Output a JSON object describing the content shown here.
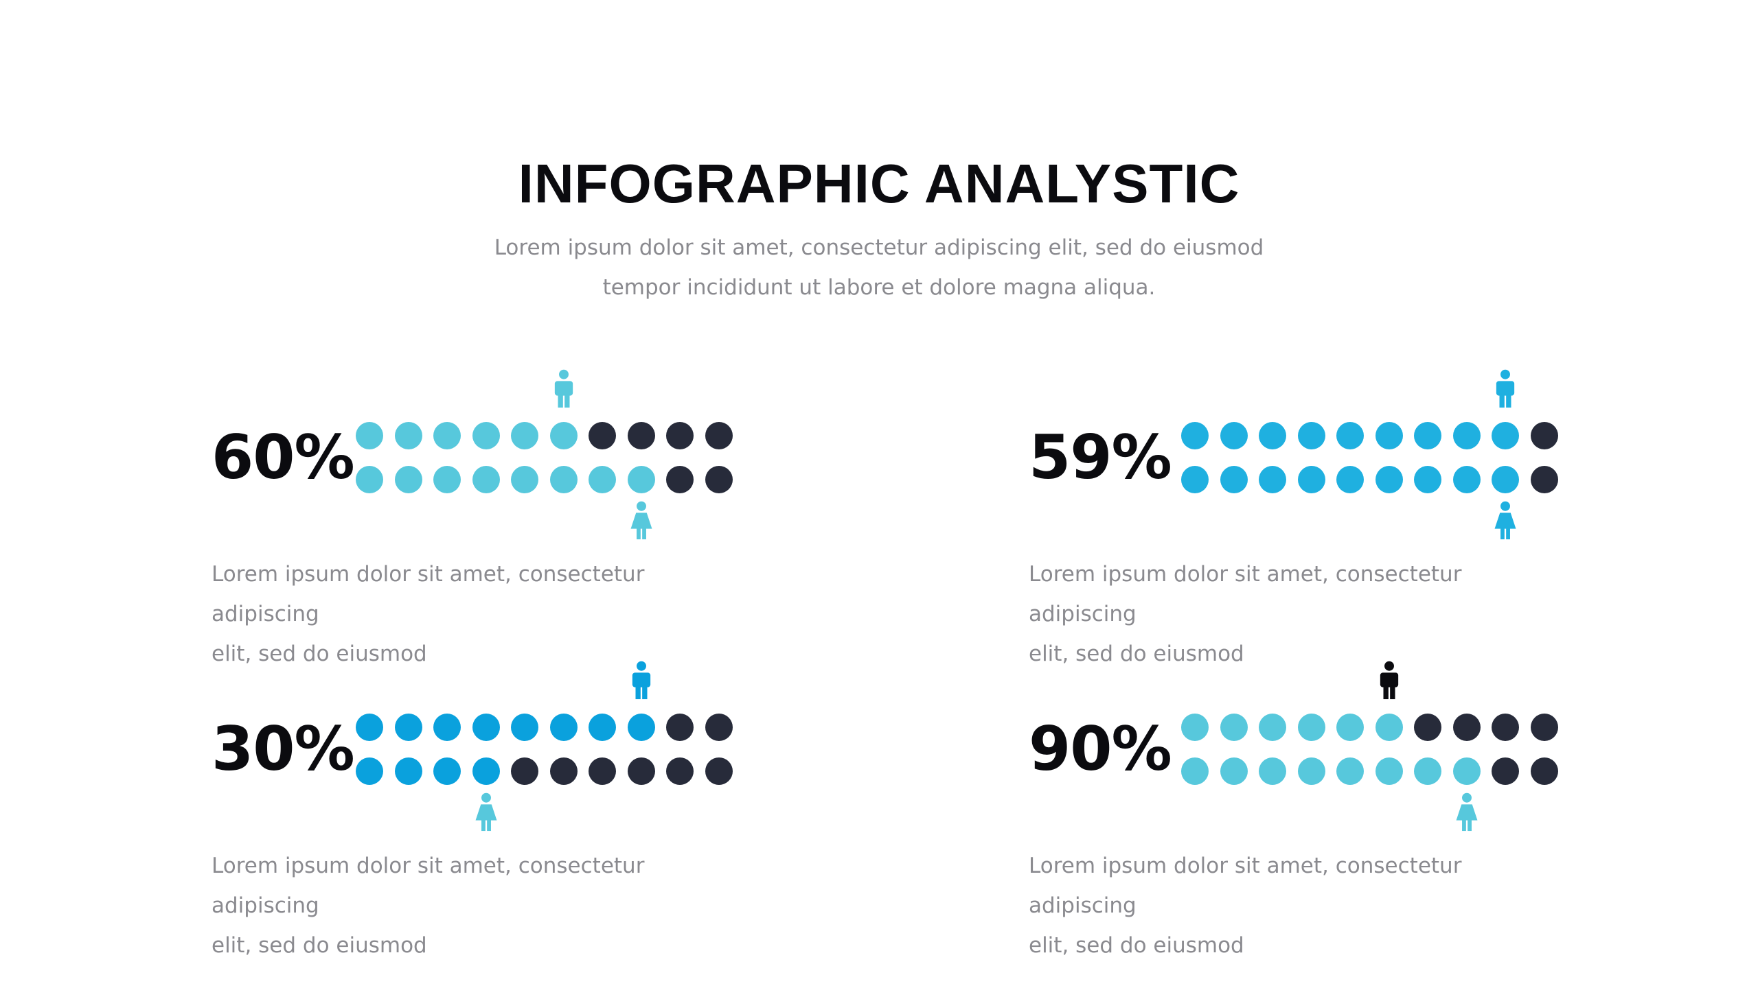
{
  "title": "INFOGRAPHIC ANALYSTIC",
  "subtitle_line1": "Lorem ipsum dolor sit amet, consectetur adipiscing elit, sed do eiusmod",
  "subtitle_line2": "tempor incididunt ut labore et dolore magna aliqua.",
  "colors": {
    "dark": "#272b3a",
    "light_cyan": "#57c8dc",
    "medium_blue": "#1fb0e0",
    "strong_blue": "#0aa1dd",
    "text_gray": "#8a8a8f",
    "title_black": "#0b0b0f"
  },
  "chart_data": [
    {
      "type": "pictogram",
      "label": "60%",
      "value": 60,
      "male_filled": 6,
      "female_filled": 8,
      "total_per_row": 10,
      "fill_color": "#57c8dc",
      "male_icon_color": "#57c8dc",
      "female_icon_color": "#57c8dc",
      "description_line1": "Lorem ipsum dolor sit amet, consectetur adipiscing",
      "description_line2": "elit, sed do eiusmod"
    },
    {
      "type": "pictogram",
      "label": "59%",
      "value": 59,
      "male_filled": 9,
      "female_filled": 9,
      "total_per_row": 10,
      "fill_color": "#1fb0e0",
      "male_icon_color": "#1fb0e0",
      "female_icon_color": "#1fb0e0",
      "description_line1": "Lorem ipsum dolor sit amet, consectetur adipiscing",
      "description_line2": "elit, sed do eiusmod"
    },
    {
      "type": "pictogram",
      "label": "30%",
      "value": 30,
      "male_filled": 8,
      "female_filled": 4,
      "total_per_row": 10,
      "fill_color": "#0aa1dd",
      "male_icon_color": "#0aa1dd",
      "female_icon_color": "#57c8dc",
      "description_line1": "Lorem ipsum dolor sit amet, consectetur adipiscing",
      "description_line2": "elit, sed do eiusmod"
    },
    {
      "type": "pictogram",
      "label": "90%",
      "value": 90,
      "male_filled": 6,
      "female_filled": 8,
      "total_per_row": 10,
      "fill_color": "#57c8dc",
      "male_icon_color": "#0b0b0f",
      "female_icon_color": "#57c8dc",
      "description_line1": "Lorem ipsum dolor sit amet, consectetur adipiscing",
      "description_line2": "elit, sed do eiusmod"
    }
  ]
}
